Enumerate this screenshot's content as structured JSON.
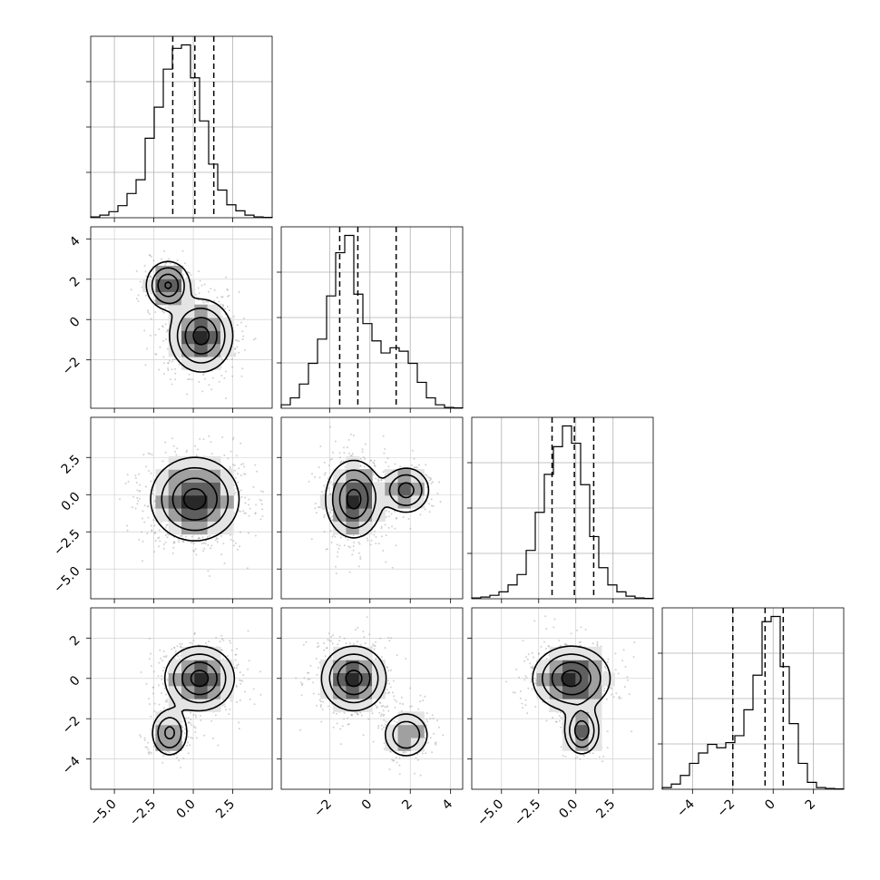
{
  "chart_data": {
    "type": "corner",
    "num_params": 4,
    "params": [
      {
        "range": [
          -6.5,
          5.0
        ],
        "ticks": [
          -5.0,
          -2.5,
          0.0,
          2.5
        ],
        "tick_labels": [
          "−5.0",
          "−2.5",
          "0.0",
          "2.5"
        ],
        "quantiles": [
          -1.3,
          0.1,
          1.3
        ],
        "hist_values": [
          0.5,
          1.5,
          3.5,
          7,
          14,
          22,
          46,
          64,
          86,
          98,
          100,
          81,
          56,
          31,
          16,
          7.5,
          4,
          1.5,
          0.5,
          0.2
        ],
        "hist_ticks": [
          0.25,
          0.5,
          0.75
        ]
      },
      {
        "range": [
          -4.4,
          4.6
        ],
        "ticks": [
          -2,
          0,
          2,
          4
        ],
        "tick_labels": [
          "−2",
          "0",
          "2",
          "4"
        ],
        "quantiles": [
          -1.5,
          -0.6,
          1.3
        ],
        "hist_values": [
          2,
          6,
          14,
          26,
          40,
          65,
          90,
          100,
          66,
          49,
          39,
          32,
          35,
          33,
          26,
          15,
          6,
          2,
          0.5,
          0.2
        ],
        "hist_ticks": [
          0.25,
          0.5,
          0.75
        ]
      },
      {
        "range": [
          -7.0,
          5.2
        ],
        "ticks": [
          -5.0,
          -2.5,
          0.0,
          2.5
        ],
        "tick_labels": [
          "−5.0",
          "−2.5",
          "0.0",
          "2.5"
        ],
        "quantiles": [
          -1.6,
          -0.1,
          1.2
        ],
        "hist_values": [
          0.5,
          1,
          2,
          4,
          8,
          14,
          28,
          50,
          72,
          88,
          100,
          90,
          66,
          36,
          18,
          8,
          4,
          1.5,
          0.5,
          0.2
        ],
        "hist_ticks": [
          0.25,
          0.5,
          0.75
        ]
      },
      {
        "range": [
          -5.5,
          3.5
        ],
        "ticks": [
          -4,
          -2,
          0,
          2
        ],
        "tick_labels": [
          "−4",
          "−2",
          "0",
          "2"
        ],
        "quantiles": [
          -2.0,
          -0.4,
          0.5
        ],
        "hist_values": [
          1,
          3,
          8,
          15,
          21,
          26,
          24,
          27,
          31,
          46,
          66,
          97,
          100,
          71,
          38,
          15,
          4,
          1,
          0.5,
          0.2
        ],
        "hist_ticks": [
          0.25,
          0.5,
          0.75
        ]
      }
    ],
    "pairs": [
      {
        "x": 0,
        "y": 1,
        "components": [
          {
            "mean": [
              0.5,
              -0.8
            ],
            "sd": [
              1.0,
              0.9
            ],
            "weight": 0.7
          },
          {
            "mean": [
              -1.6,
              1.7
            ],
            "sd": [
              0.7,
              0.6
            ],
            "weight": 0.3
          }
        ]
      },
      {
        "x": 0,
        "y": 2,
        "components": [
          {
            "mean": [
              0.1,
              -0.3
            ],
            "sd": [
              1.4,
              1.4
            ],
            "weight": 1.0
          }
        ]
      },
      {
        "x": 1,
        "y": 2,
        "components": [
          {
            "mean": [
              -0.8,
              -0.3
            ],
            "sd": [
              0.7,
              1.3
            ],
            "weight": 0.72
          },
          {
            "mean": [
              1.8,
              0.3
            ],
            "sd": [
              0.6,
              0.8
            ],
            "weight": 0.28
          }
        ]
      },
      {
        "x": 0,
        "y": 3,
        "components": [
          {
            "mean": [
              0.4,
              0.0
            ],
            "sd": [
              1.1,
              0.8
            ],
            "weight": 0.78
          },
          {
            "mean": [
              -1.5,
              -2.7
            ],
            "sd": [
              0.6,
              0.6
            ],
            "weight": 0.22
          }
        ]
      },
      {
        "x": 1,
        "y": 3,
        "components": [
          {
            "mean": [
              -0.8,
              0.0
            ],
            "sd": [
              0.8,
              0.8
            ],
            "weight": 0.75
          },
          {
            "mean": [
              1.8,
              -2.8
            ],
            "sd": [
              0.6,
              0.6
            ],
            "weight": 0.25
          }
        ]
      },
      {
        "x": 2,
        "y": 3,
        "components": [
          {
            "mean": [
              -0.3,
              0.0
            ],
            "sd": [
              1.3,
              0.8
            ],
            "weight": 0.78
          },
          {
            "mean": [
              0.4,
              -2.6
            ],
            "sd": [
              0.6,
              0.6
            ],
            "weight": 0.22
          }
        ]
      }
    ],
    "contour_levels": [
      "0.5σ",
      "1σ",
      "1.5σ",
      "2σ"
    ],
    "grid": true,
    "legend": "none"
  }
}
